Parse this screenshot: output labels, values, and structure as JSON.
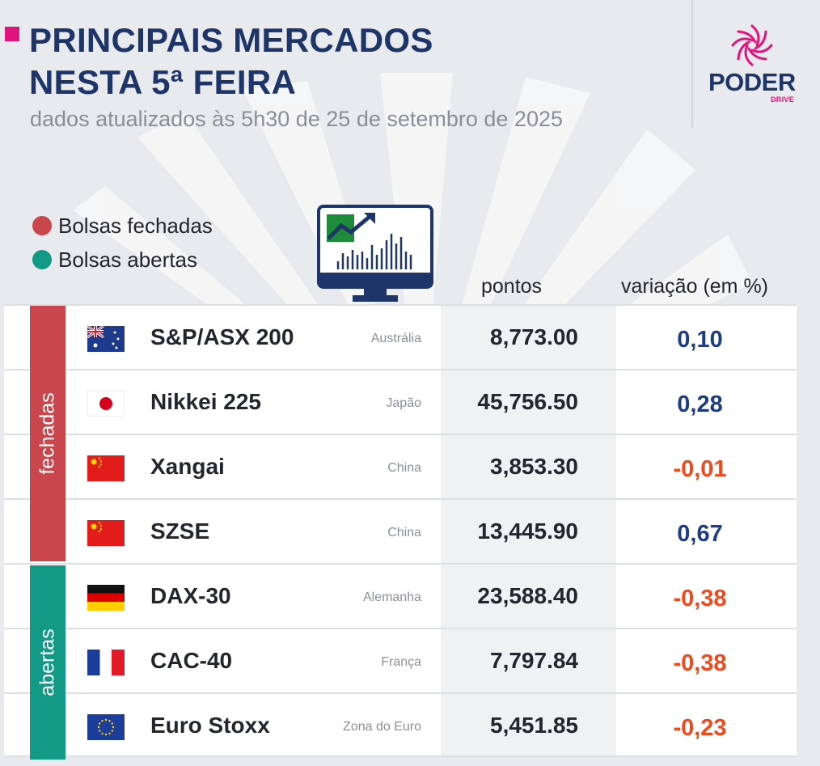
{
  "header": {
    "title_line1": "PRINCIPAIS MERCADOS",
    "title_line2": "NESTA 5ª FEIRA",
    "subtitle": "dados atualizados às 5h30 de 25 de setembro de 2025"
  },
  "logo": {
    "name": "PODER",
    "sub": "DRIVE",
    "icon": "sunburst-logo-icon"
  },
  "legend": {
    "closed": {
      "label": "Bolsas fechadas",
      "color": "#c9474c"
    },
    "open": {
      "label": "Bolsas abertas",
      "color": "#139a86"
    }
  },
  "columns": {
    "points": "pontos",
    "variation": "variação (em %)"
  },
  "groups": {
    "closed_label": "fechadas",
    "open_label": "abertas"
  },
  "colors": {
    "positive": "#1d3d85",
    "negative": "#ef4a1c",
    "closed": "#c9474c",
    "open": "#139a86"
  },
  "rows": [
    {
      "name": "S&P/ASX 200",
      "country": "Austrália",
      "points": "8,773.00",
      "variation": "0,10",
      "trend": "up",
      "flag": "australia-flag-icon"
    },
    {
      "name": "Nikkei 225",
      "country": "Japão",
      "points": "45,756.50",
      "variation": "0,28",
      "trend": "up",
      "flag": "japan-flag-icon"
    },
    {
      "name": "Xangai",
      "country": "China",
      "points": "3,853.30",
      "variation": "-0,01",
      "trend": "down",
      "flag": "china-flag-icon"
    },
    {
      "name": "SZSE",
      "country": "China",
      "points": "13,445.90",
      "variation": "0,67",
      "trend": "up",
      "flag": "china-flag-icon"
    },
    {
      "name": "DAX-30",
      "country": "Alemanha",
      "points": "23,588.40",
      "variation": "-0,38",
      "trend": "down",
      "flag": "germany-flag-icon"
    },
    {
      "name": "CAC-40",
      "country": "França",
      "points": "7,797.84",
      "variation": "-0,38",
      "trend": "down",
      "flag": "france-flag-icon"
    },
    {
      "name": "Euro Stoxx",
      "country": "Zona do Euro",
      "points": "5,451.85",
      "variation": "-0,23",
      "trend": "down",
      "flag": "eu-flag-icon"
    }
  ]
}
